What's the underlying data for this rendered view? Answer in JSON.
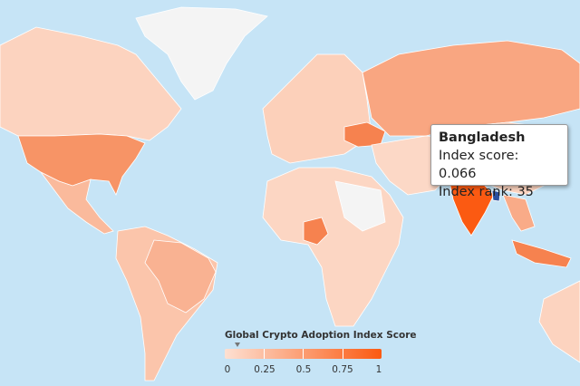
{
  "tooltip": {
    "country": "Bangladesh",
    "score_line": "Index score: 0.066",
    "rank_line": "Index rank: 35"
  },
  "legend": {
    "title": "Global Crypto Adoption Index Score",
    "ticks": [
      "0",
      "0.25",
      "0.5",
      "0.75",
      "1"
    ],
    "range": [
      0,
      1
    ],
    "marker_value": 0.066,
    "color_low": "#fde0d2",
    "color_high": "#fb5a12"
  },
  "colors": {
    "ocean": "#c6e4f6",
    "no_data": "#f4f4f4",
    "low": "#fcd3bf",
    "mid": "#f9a27e",
    "high": "#f6824f",
    "top": "#fb5a12",
    "hover": "#2b4f9e"
  },
  "highlighted_countries": [
    "United States",
    "India",
    "Nigeria",
    "Bangladesh",
    "Ukraine",
    "Russia"
  ]
}
